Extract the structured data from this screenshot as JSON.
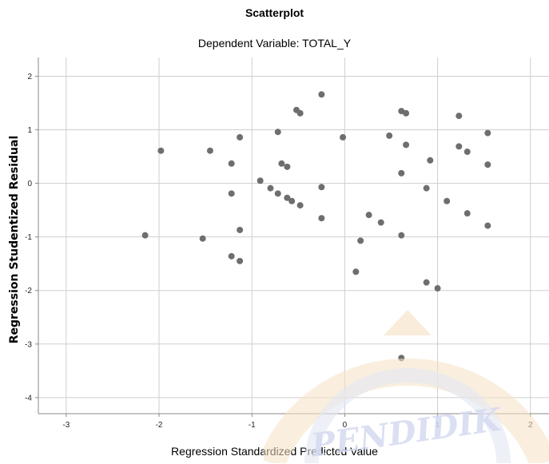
{
  "chart_data": {
    "type": "scatter",
    "title": "Scatterplot",
    "subtitle": "Dependent Variable: TOTAL_Y",
    "xlabel": "Regression Standardized Predicted Value",
    "ylabel": "Regression Studentized Residual",
    "xlim": [
      -3.3,
      2.2
    ],
    "ylim": [
      -4.3,
      2.35
    ],
    "xticks": [
      -3,
      -2,
      -1,
      0,
      1,
      2
    ],
    "yticks": [
      2,
      1,
      0,
      -1,
      -2,
      -3,
      -4
    ],
    "grid": true,
    "point_color": "#6e6e6e",
    "points": [
      {
        "x": -2.15,
        "y": -0.97
      },
      {
        "x": -1.98,
        "y": 0.61
      },
      {
        "x": -1.53,
        "y": -1.03
      },
      {
        "x": -1.45,
        "y": 0.61
      },
      {
        "x": -1.22,
        "y": 0.37
      },
      {
        "x": -1.22,
        "y": -0.19
      },
      {
        "x": -1.22,
        "y": -1.36
      },
      {
        "x": -1.13,
        "y": 0.86
      },
      {
        "x": -1.13,
        "y": -0.87
      },
      {
        "x": -1.13,
        "y": -1.45
      },
      {
        "x": -0.91,
        "y": 0.05
      },
      {
        "x": -0.8,
        "y": -0.09
      },
      {
        "x": -0.72,
        "y": 0.96
      },
      {
        "x": -0.72,
        "y": -0.19
      },
      {
        "x": -0.68,
        "y": 0.37
      },
      {
        "x": -0.62,
        "y": 0.31
      },
      {
        "x": -0.62,
        "y": -0.27
      },
      {
        "x": -0.57,
        "y": -0.33
      },
      {
        "x": -0.52,
        "y": 1.37
      },
      {
        "x": -0.48,
        "y": 1.31
      },
      {
        "x": -0.48,
        "y": -0.41
      },
      {
        "x": -0.25,
        "y": 1.66
      },
      {
        "x": -0.25,
        "y": -0.07
      },
      {
        "x": -0.25,
        "y": -0.65
      },
      {
        "x": -0.02,
        "y": 0.86
      },
      {
        "x": 0.12,
        "y": -1.65
      },
      {
        "x": 0.17,
        "y": -1.07
      },
      {
        "x": 0.26,
        "y": -0.59
      },
      {
        "x": 0.39,
        "y": -0.73
      },
      {
        "x": 0.48,
        "y": 0.89
      },
      {
        "x": 0.61,
        "y": 1.35
      },
      {
        "x": 0.61,
        "y": 0.19
      },
      {
        "x": 0.61,
        "y": -0.97
      },
      {
        "x": 0.61,
        "y": -3.26
      },
      {
        "x": 0.66,
        "y": 1.31
      },
      {
        "x": 0.66,
        "y": 0.72
      },
      {
        "x": 0.88,
        "y": -0.09
      },
      {
        "x": 0.88,
        "y": -1.85
      },
      {
        "x": 0.92,
        "y": 0.43
      },
      {
        "x": 1.0,
        "y": -1.96
      },
      {
        "x": 1.1,
        "y": -0.33
      },
      {
        "x": 1.23,
        "y": 1.26
      },
      {
        "x": 1.23,
        "y": 0.69
      },
      {
        "x": 1.32,
        "y": 0.59
      },
      {
        "x": 1.32,
        "y": -0.56
      },
      {
        "x": 1.54,
        "y": 0.94
      },
      {
        "x": 1.54,
        "y": 0.35
      },
      {
        "x": 1.54,
        "y": -0.79
      }
    ]
  }
}
